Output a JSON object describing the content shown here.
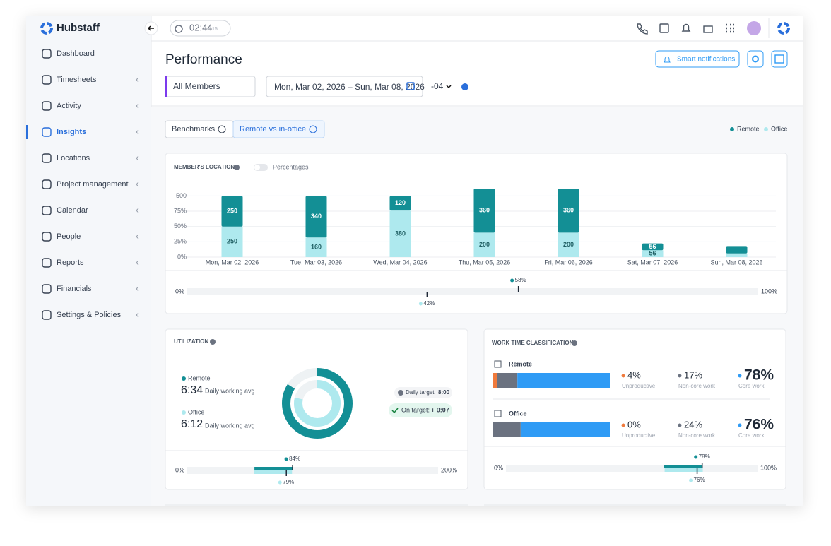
{
  "sidebar": {
    "brand": "Hubstaff",
    "items": [
      "Dashboard",
      "Timesheets",
      "Activity",
      "Insights",
      "Locations",
      "Project management",
      "Calendar",
      "People",
      "Reports",
      "Financials",
      "Settings & Policies"
    ],
    "active": 3
  },
  "topbar": {
    "timer": "02:44",
    "timer_seconds": "15"
  },
  "page": {
    "title": "Performance",
    "member_filter": "All Members",
    "date_range": "Mon, Mar 02, 2026 – Sun, Mar 08, 2026",
    "timezone": "-04",
    "smart_notifications": "Smart notifications"
  },
  "tabs": {
    "items": [
      "Benchmarks",
      "Remote vs in-office"
    ],
    "active": 1
  },
  "legend": [
    {
      "name": "Remote",
      "color": "#138f95"
    },
    {
      "name": "Office",
      "color": "#aee9ee"
    }
  ],
  "members_location": {
    "title": "MEMBER'S LOCATION",
    "toggle": "Percentages",
    "chart_data": {
      "type": "bar",
      "categories": [
        "Mon, Mar 02, 2026",
        "Tue, Mar 03, 2026",
        "Wed, Mar 04, 2026",
        "Thu, Mar 05, 2026",
        "Fri, Mar 06, 2026",
        "Sat, Mar 07, 2026",
        "Sun, Mar 08, 2026"
      ],
      "series": [
        {
          "name": "Office",
          "color": "#aee9ee",
          "values": [
            250,
            160,
            380,
            200,
            200,
            56,
            30
          ]
        },
        {
          "name": "Remote",
          "color": "#138f95",
          "values": [
            250,
            340,
            120,
            360,
            360,
            56,
            60
          ]
        }
      ],
      "value_labels_shown": [
        true,
        true,
        true,
        true,
        true,
        true,
        false
      ],
      "ylim": [
        0,
        560
      ],
      "yticks": [
        {
          "value": 0,
          "label": "0%"
        },
        {
          "value": 125,
          "label": "25%"
        },
        {
          "value": 250,
          "label": "50%"
        },
        {
          "value": 375,
          "label": "75%"
        },
        500
      ],
      "grid": true
    },
    "benchmark": {
      "scale": [
        {
          "value": 0,
          "label": "0%"
        },
        {
          "value": 100,
          "label": "100%"
        }
      ],
      "values": [
        58,
        42
      ],
      "value_labels": [
        "58%",
        "42%"
      ]
    }
  },
  "utilization": {
    "title": "UTILIZATION",
    "remote": {
      "name": "Remote",
      "time": "6:34",
      "caption": "Daily working avg"
    },
    "office": {
      "name": "Office",
      "time": "6:12",
      "caption": "Daily working avg"
    },
    "target_label": "Daily target:",
    "target": "8:00",
    "status_label": "On target:",
    "status": "+ 0:07",
    "benchmark": {
      "scale": [
        {
          "value": 0,
          "label": "0%"
        },
        {
          "value": 200,
          "label": "200%"
        }
      ],
      "values": [
        84,
        79
      ],
      "value_labels": [
        "84%",
        "79%"
      ]
    }
  },
  "work_time": {
    "title": "WORK TIME CLASSIFICATION",
    "categories": [
      "Unproductive",
      "Non-core work",
      "Core work"
    ],
    "colors": [
      "#f07a3c",
      "#6b7280",
      "#2f9bf5"
    ],
    "rows": [
      {
        "name": "Remote",
        "values": [
          4,
          17,
          78
        ],
        "value_labels": [
          "4%",
          "17%",
          "78%"
        ]
      },
      {
        "name": "Office",
        "values": [
          0,
          24,
          76
        ],
        "value_labels": [
          "0%",
          "24%",
          "76%"
        ]
      }
    ],
    "benchmark": {
      "scale": [
        {
          "value": 0,
          "label": "0%"
        },
        {
          "value": 100,
          "label": "100%"
        }
      ],
      "values": [
        78,
        76
      ],
      "value_labels": [
        "78%",
        "76%"
      ]
    }
  }
}
